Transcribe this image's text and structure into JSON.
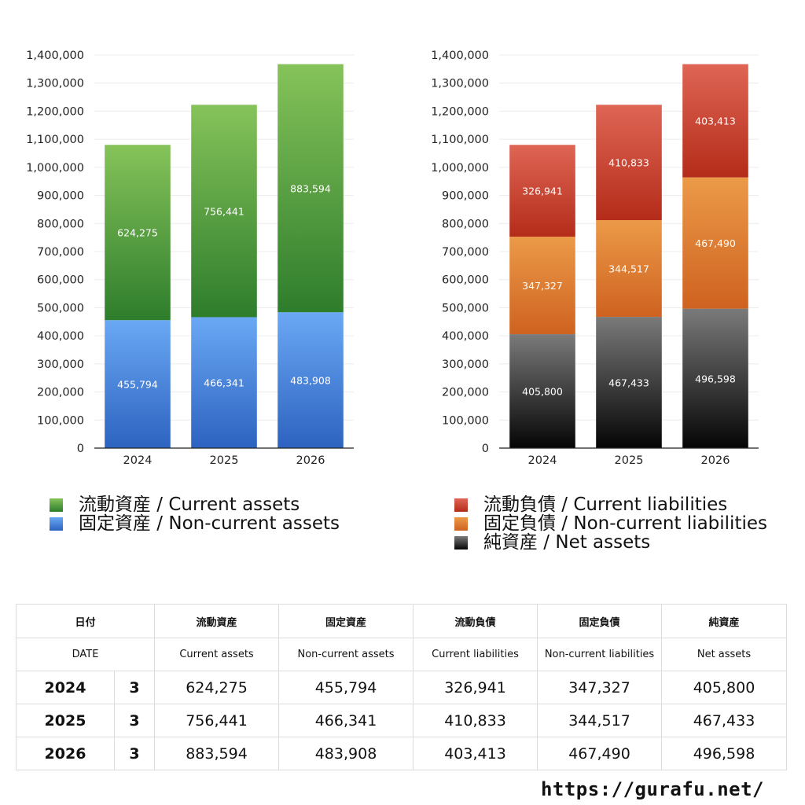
{
  "chart_data": [
    {
      "type": "bar",
      "stacked": true,
      "categories": [
        "2024",
        "2025",
        "2026"
      ],
      "ylim": [
        0,
        1400000
      ],
      "yticks": [
        "0",
        "100,000",
        "200,000",
        "300,000",
        "400,000",
        "500,000",
        "600,000",
        "700,000",
        "800,000",
        "900,000",
        "1,000,000",
        "1,100,000",
        "1,200,000",
        "1,300,000",
        "1,400,000"
      ],
      "grid": true,
      "legend_position": "bottom",
      "series": [
        {
          "name": "固定資産 / Non-current assets",
          "values": [
            455794,
            466341,
            483908
          ],
          "colors": [
            "#6aa8f4",
            "#2d63c0"
          ]
        },
        {
          "name": "流動資産 / Current assets",
          "values": [
            624275,
            756441,
            883594
          ],
          "colors": [
            "#86c35a",
            "#2e7d2c"
          ]
        }
      ],
      "value_labels": [
        [
          "455,794",
          "466,341",
          "483,908"
        ],
        [
          "624,275",
          "756,441",
          "883,594"
        ]
      ]
    },
    {
      "type": "bar",
      "stacked": true,
      "categories": [
        "2024",
        "2025",
        "2026"
      ],
      "ylim": [
        0,
        1400000
      ],
      "yticks": [
        "0",
        "100,000",
        "200,000",
        "300,000",
        "400,000",
        "500,000",
        "600,000",
        "700,000",
        "800,000",
        "900,000",
        "1,000,000",
        "1,100,000",
        "1,200,000",
        "1,300,000",
        "1,400,000"
      ],
      "grid": true,
      "legend_position": "bottom",
      "series": [
        {
          "name": "純資産 / Net assets",
          "values": [
            405800,
            467433,
            496598
          ],
          "colors": [
            "#7a7a7a",
            "#050505"
          ]
        },
        {
          "name": "固定負債 / Non-current liabilities",
          "values": [
            347327,
            344517,
            467490
          ],
          "colors": [
            "#eb9a48",
            "#cf6220"
          ]
        },
        {
          "name": "流動負債 / Current liabilities",
          "values": [
            326941,
            410833,
            403413
          ],
          "colors": [
            "#df6555",
            "#b42c19"
          ]
        }
      ],
      "value_labels": [
        [
          "405,800",
          "467,433",
          "496,598"
        ],
        [
          "347,327",
          "344,517",
          "467,490"
        ],
        [
          "326,941",
          "410,833",
          "403,413"
        ]
      ]
    }
  ],
  "legend_left": [
    {
      "label": "流動資産 / Current assets",
      "color": "#4caf3f"
    },
    {
      "label": "固定資産 / Non-current assets",
      "color": "#3f7fdc"
    }
  ],
  "legend_right": [
    {
      "label": "流動負債 / Current liabilities",
      "color": "#d2402c"
    },
    {
      "label": "固定負債 / Non-current liabilities",
      "color": "#e8832e"
    },
    {
      "label": "純資産 / Net assets",
      "color": "#222222"
    }
  ],
  "table": {
    "header_jp": [
      "日付",
      "流動資産",
      "固定資産",
      "流動負債",
      "固定負債",
      "純資産"
    ],
    "header_en": [
      "DATE",
      "Current assets",
      "Non-current assets",
      "Current liabilities",
      "Non-current liabilities",
      "Net assets"
    ],
    "rows": [
      {
        "year": "2024",
        "count": "3",
        "values": [
          "624,275",
          "455,794",
          "326,941",
          "347,327",
          "405,800"
        ]
      },
      {
        "year": "2025",
        "count": "3",
        "values": [
          "756,441",
          "466,341",
          "410,833",
          "344,517",
          "467,433"
        ]
      },
      {
        "year": "2026",
        "count": "3",
        "values": [
          "883,594",
          "483,908",
          "403,413",
          "467,490",
          "496,598"
        ]
      }
    ]
  },
  "footer": {
    "url": "https://gurafu.net/"
  }
}
